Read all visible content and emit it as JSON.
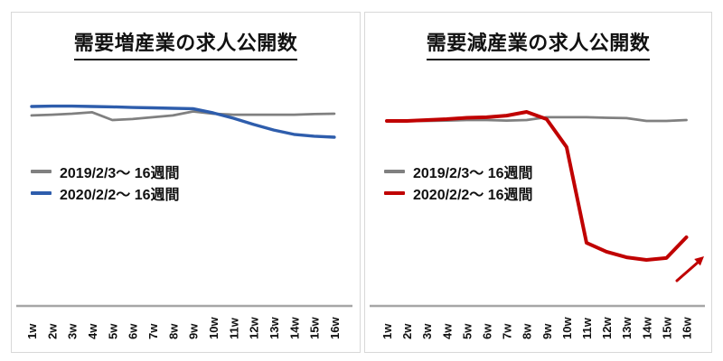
{
  "chart_data": [
    {
      "type": "line",
      "title": "需要増産業の求人公開数",
      "x": [
        "1w",
        "2w",
        "3w",
        "4w",
        "5w",
        "6w",
        "7w",
        "8w",
        "9w",
        "10w",
        "11w",
        "12w",
        "13w",
        "14w",
        "15w",
        "16w"
      ],
      "series": [
        {
          "name": "2019/2/3〜 16週間",
          "color": "#808080",
          "values": [
            95.5,
            95.9,
            96.4,
            97.1,
            93.2,
            93.7,
            94.6,
            95.5,
            97.5,
            96.4,
            95.9,
            95.9,
            95.9,
            95.9,
            96.2,
            96.4
          ]
        },
        {
          "name": "2020/2/2〜 16週間",
          "color": "#2e5dac",
          "values": [
            100,
            100.2,
            100.2,
            100,
            99.8,
            99.5,
            99.3,
            99.1,
            98.9,
            96.8,
            94.1,
            91.0,
            88.2,
            86.0,
            85.1,
            84.6
          ]
        }
      ],
      "xlabel": "",
      "ylabel": "",
      "y_axis_visible": false,
      "x_labels_rotation": -90,
      "legend_position": "center-left",
      "axis_color": "#a6a6a6",
      "note": "relative job-posting index, no numeric y-axis shown"
    },
    {
      "type": "line",
      "title": "需要減産業の求人公開数",
      "x": [
        "1w",
        "2w",
        "3w",
        "4w",
        "5w",
        "6w",
        "7w",
        "8w",
        "9w",
        "10w",
        "11w",
        "12w",
        "13w",
        "14w",
        "15w",
        "16w"
      ],
      "series": [
        {
          "name": "2019/2/3〜 16週間",
          "color": "#808080",
          "values": [
            100,
            100,
            100,
            100.2,
            100.5,
            100.5,
            100.2,
            100.5,
            102,
            102,
            102,
            101.7,
            101.5,
            100,
            100,
            100.5
          ]
        },
        {
          "name": "2020/2/2〜 16週間",
          "color": "#c00000",
          "values": [
            100,
            100,
            100.5,
            101,
            101.7,
            102,
            102.9,
            104.9,
            101,
            85.9,
            34.1,
            29.3,
            26.3,
            24.9,
            25.9,
            37.1
          ]
        }
      ],
      "xlabel": "",
      "ylabel": "",
      "y_axis_visible": false,
      "x_labels_rotation": -90,
      "legend_position": "center-left",
      "axis_color": "#a6a6a6",
      "annotation": {
        "type": "arrow",
        "direction": "up-right",
        "color": "#c00000"
      },
      "note": "relative job-posting index, no numeric y-axis shown; sharp drop after week 9"
    }
  ]
}
